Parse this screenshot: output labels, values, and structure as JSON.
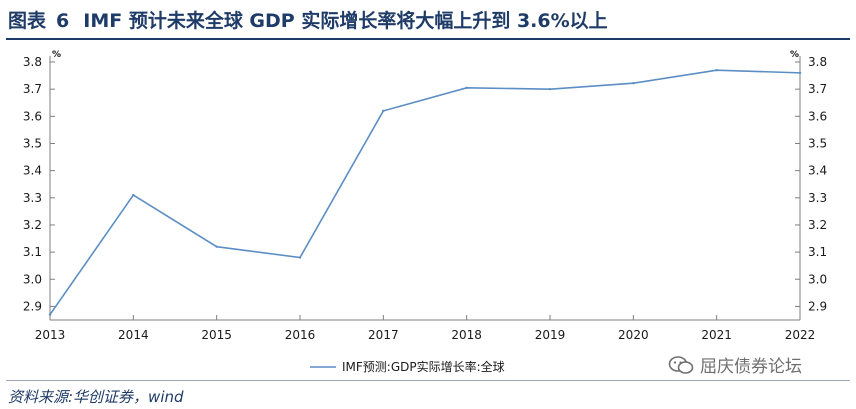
{
  "figure": {
    "label": "图表",
    "number": "6",
    "title": "IMF 预计未来全球 GDP 实际增长率将大幅上升到 3.6%以上"
  },
  "source": "资料来源:华创证券，wind",
  "watermark": {
    "text": "屈庆债券论坛",
    "icon": "wechat-icon"
  },
  "colors": {
    "title": "#1f3b67",
    "line": "#5b8ec5",
    "axis": "#7f7f7f"
  },
  "chart_data": {
    "type": "line",
    "categories": [
      "2013",
      "2014",
      "2015",
      "2016",
      "2017",
      "2018",
      "2019",
      "2020",
      "2021",
      "2022"
    ],
    "series": [
      {
        "name": "IMF预测:GDP实际增长率:全球",
        "values": [
          2.87,
          3.31,
          3.12,
          3.08,
          3.62,
          3.705,
          3.7,
          3.722,
          3.77,
          3.76
        ]
      }
    ],
    "ylim": [
      2.85,
      3.8
    ],
    "yticks": [
      2.9,
      3.0,
      3.1,
      3.2,
      3.3,
      3.4,
      3.5,
      3.6,
      3.7,
      3.8
    ],
    "ytick_labels": [
      "2.9",
      "3.0",
      "3.1",
      "3.2",
      "3.3",
      "3.4",
      "3.5",
      "3.6",
      "3.7",
      "3.8"
    ],
    "y_unit_left": "%",
    "y_unit_right": "%",
    "legend_position": "bottom",
    "grid": false
  }
}
